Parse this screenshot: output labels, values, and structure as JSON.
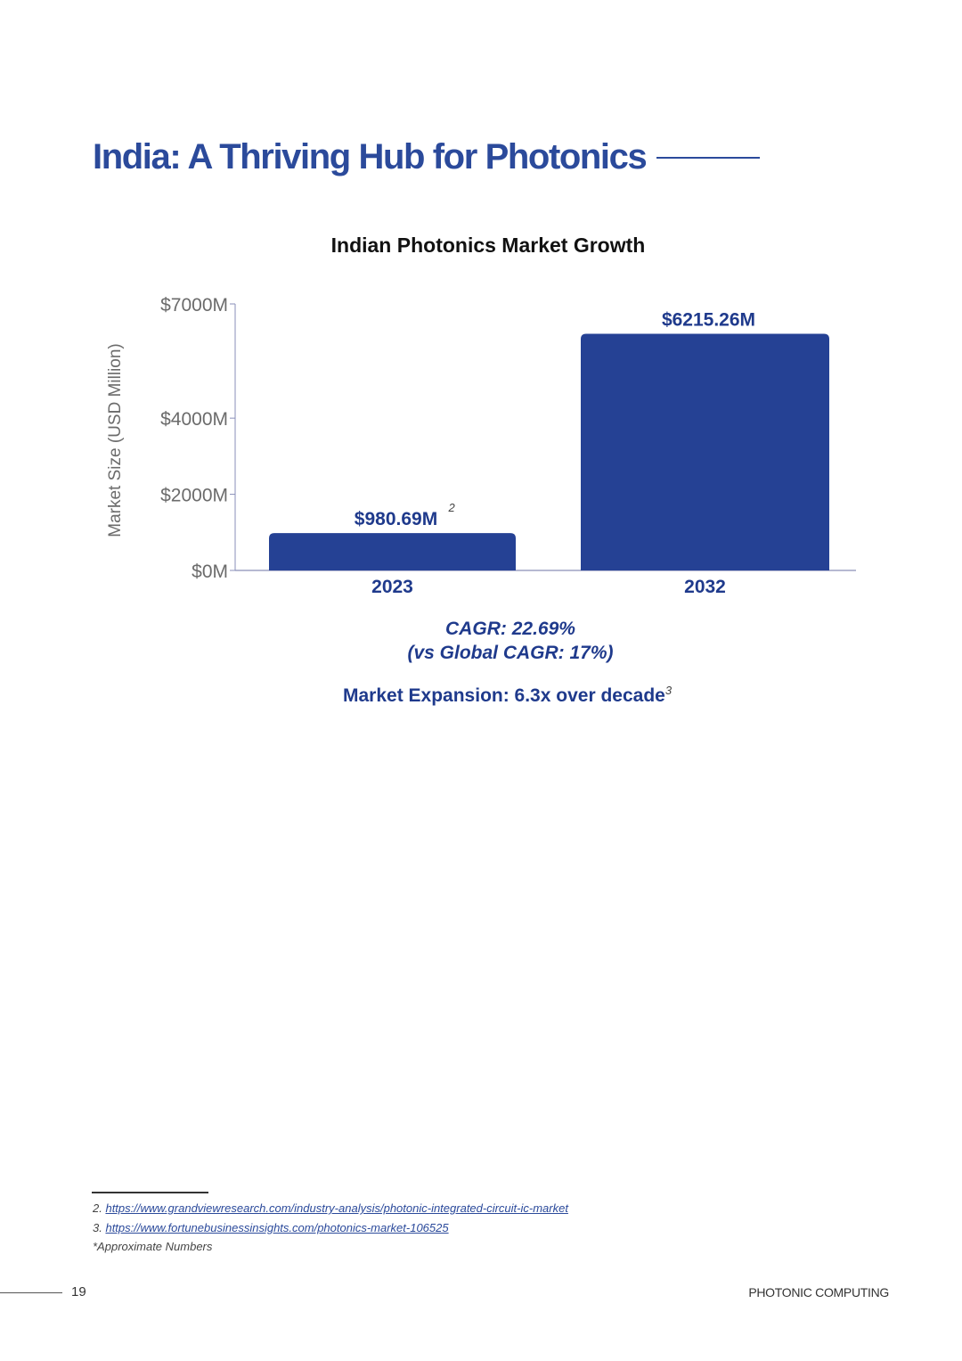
{
  "page": {
    "title": "India: A Thriving Hub for Photonics",
    "page_number": "19",
    "document_label": "PHOTONIC COMPUTING"
  },
  "captions": {
    "cagr": "CAGR: 22.69%",
    "cagr_compare": "(vs Global CAGR: 17%)",
    "expansion": "Market Expansion: 6.3x over decade",
    "expansion_ref": "3"
  },
  "footnotes": [
    {
      "number": "2.",
      "url": "https://www.grandviewresearch.com/industry-analysis/photonic-integrated-circuit-ic-market"
    },
    {
      "number": "3.",
      "url": "https://www.fortunebusinessinsights.com/photonics-market-106525"
    },
    {
      "text": "*Approximate Numbers"
    }
  ],
  "colors": {
    "bar": "#254194",
    "title": "#2b4a9b",
    "caption": "#1f3a8c",
    "axis_text": "#6b6b6b"
  },
  "chart_data": {
    "type": "bar",
    "title": "Indian Photonics Market Growth",
    "ylabel": "Market Size (USD Million)",
    "xlabel": "",
    "categories": [
      "2023",
      "2032"
    ],
    "values": [
      980.69,
      6215.26
    ],
    "data_labels": [
      "$980.69M",
      "$6215.26M"
    ],
    "data_label_refs": [
      "2",
      ""
    ],
    "y_ticks": [
      0,
      2000,
      4000,
      7000
    ],
    "y_tick_labels": [
      "$0M",
      "$2000M",
      "$4000M",
      "$7000M"
    ],
    "ylim": [
      0,
      7000
    ],
    "grid": false,
    "legend": "none"
  }
}
